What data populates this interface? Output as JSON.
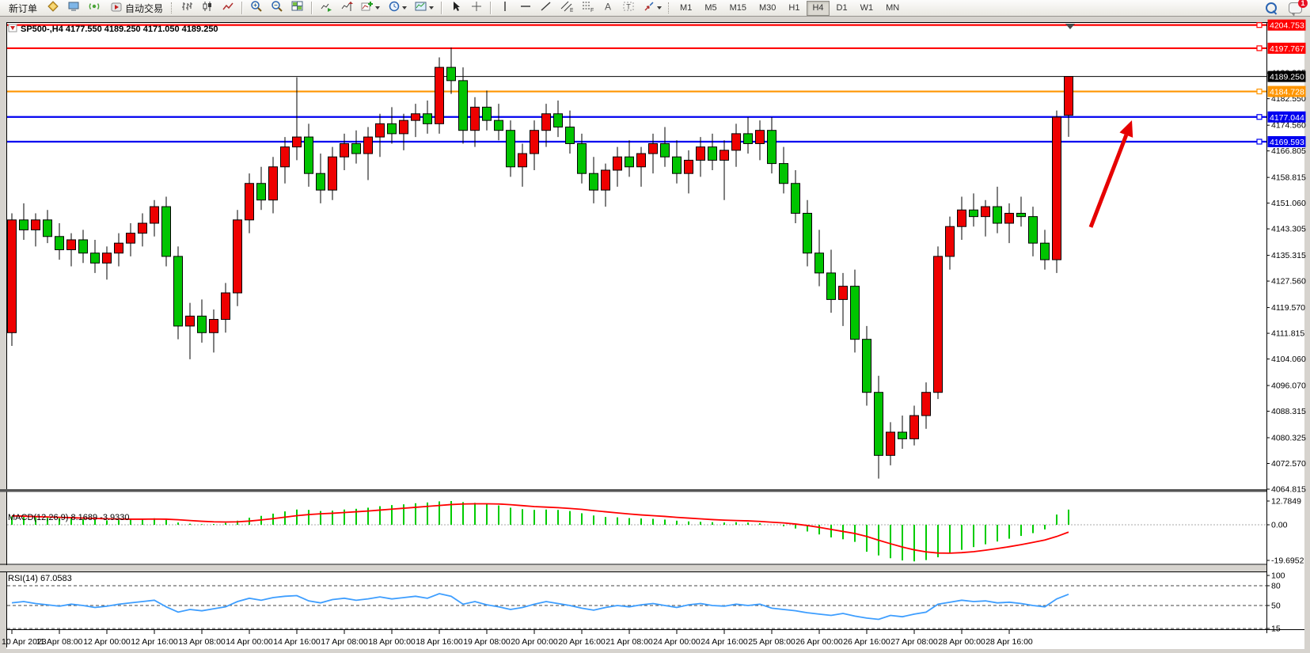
{
  "toolbar": {
    "new_order": "新订单",
    "auto_trading": "自动交易",
    "timeframes": [
      "M1",
      "M5",
      "M15",
      "M30",
      "H1",
      "H4",
      "D1",
      "W1",
      "MN"
    ],
    "active_timeframe": "H4",
    "chat_badge": "1",
    "glyphs": {
      "text_icon": "A",
      "label_icon": "T",
      "channel_icon": "E",
      "fibonacci_icon": "F"
    },
    "icons": [
      "metaeditor-icon",
      "terminal-icon",
      "signals-icon",
      "autotrading-icon",
      "bar-chart-icon",
      "candlestick-chart-icon",
      "line-chart-icon",
      "zoom-in-icon",
      "zoom-out-icon",
      "tile-windows-icon",
      "auto-scroll-icon",
      "chart-shift-icon",
      "indicators-icon",
      "periods-icon",
      "templates-icon",
      "cursor-icon",
      "crosshair-icon",
      "vertical-line-icon",
      "horizontal-line-icon",
      "trendline-icon",
      "equidistant-channel-icon",
      "fibonacci-icon",
      "text-icon",
      "text-label-icon",
      "arrows-icon",
      "search-icon",
      "chat-icon"
    ]
  },
  "chart_data": {
    "type": "candlestick",
    "symbol_period": "SP500-,H4",
    "ohlc": {
      "open": "4177.550",
      "high": "4189.250",
      "low": "4171.050",
      "close": "4189.250"
    },
    "current_price": 4189.25,
    "current_price_label": "4189.250",
    "up_color": "#EE0000",
    "down_color": "#00C400",
    "price_axis_ticks": [
      "4190.305",
      "4182.550",
      "4174.560",
      "4166.805",
      "4158.815",
      "4151.060",
      "4143.305",
      "4135.315",
      "4127.560",
      "4119.570",
      "4111.815",
      "4104.060",
      "4096.070",
      "4088.315",
      "4080.325",
      "4072.570",
      "4064.815"
    ],
    "horizontal_lines": [
      {
        "price": 4204.753,
        "label": "4204.753",
        "color": "#FF0000"
      },
      {
        "price": 4197.767,
        "label": "4197.767",
        "color": "#FF0000"
      },
      {
        "price": 4184.728,
        "label": "4184.728",
        "color": "#FF9500"
      },
      {
        "price": 4177.044,
        "label": "4177.044",
        "color": "#0000F0"
      },
      {
        "price": 4169.593,
        "label": "4169.593",
        "color": "#0000F0"
      }
    ],
    "x_labels": [
      "10 Apr 2023",
      "11 Apr 08:00",
      "12 Apr 00:00",
      "12 Apr 16:00",
      "13 Apr 08:00",
      "14 Apr 00:00",
      "14 Apr 16:00",
      "17 Apr 08:00",
      "18 Apr 00:00",
      "18 Apr 16:00",
      "19 Apr 08:00",
      "20 Apr 00:00",
      "20 Apr 16:00",
      "21 Apr 08:00",
      "24 Apr 00:00",
      "24 Apr 16:00",
      "25 Apr 08:00",
      "26 Apr 00:00",
      "26 Apr 16:00",
      "27 Apr 08:00",
      "28 Apr 00:00",
      "28 Apr 16:00"
    ],
    "candles": [
      [
        4112,
        4148,
        4108,
        4146
      ],
      [
        4146,
        4151,
        4140,
        4143
      ],
      [
        4143,
        4148,
        4138,
        4146
      ],
      [
        4146,
        4149,
        4139,
        4141
      ],
      [
        4141,
        4145,
        4134,
        4137
      ],
      [
        4137,
        4142,
        4132,
        4140
      ],
      [
        4140,
        4143,
        4133,
        4136
      ],
      [
        4136,
        4140,
        4130,
        4133
      ],
      [
        4133,
        4138,
        4128,
        4136
      ],
      [
        4136,
        4142,
        4132,
        4139
      ],
      [
        4139,
        4145,
        4135,
        4142
      ],
      [
        4142,
        4148,
        4138,
        4145
      ],
      [
        4145,
        4152,
        4141,
        4150
      ],
      [
        4150,
        4153,
        4132,
        4135
      ],
      [
        4135,
        4138,
        4110,
        4114
      ],
      [
        4114,
        4121,
        4104,
        4117
      ],
      [
        4117,
        4122,
        4109,
        4112
      ],
      [
        4112,
        4119,
        4106,
        4116
      ],
      [
        4116,
        4127,
        4112,
        4124
      ],
      [
        4124,
        4149,
        4120,
        4146
      ],
      [
        4146,
        4160,
        4142,
        4157
      ],
      [
        4157,
        4162,
        4149,
        4152
      ],
      [
        4152,
        4165,
        4148,
        4162
      ],
      [
        4162,
        4171,
        4157,
        4168
      ],
      [
        4168,
        4189,
        4164,
        4171
      ],
      [
        4171,
        4175,
        4156,
        4160
      ],
      [
        4160,
        4166,
        4151,
        4155
      ],
      [
        4155,
        4168,
        4152,
        4165
      ],
      [
        4165,
        4172,
        4161,
        4169
      ],
      [
        4169,
        4173,
        4163,
        4166
      ],
      [
        4166,
        4174,
        4158,
        4171
      ],
      [
        4171,
        4178,
        4165,
        4175
      ],
      [
        4175,
        4180,
        4169,
        4172
      ],
      [
        4172,
        4178,
        4167,
        4176
      ],
      [
        4176,
        4181,
        4171,
        4178
      ],
      [
        4178,
        4182,
        4172,
        4175
      ],
      [
        4175,
        4195,
        4172,
        4192
      ],
      [
        4192,
        4198,
        4184,
        4188
      ],
      [
        4188,
        4192,
        4169,
        4173
      ],
      [
        4173,
        4183,
        4168,
        4180
      ],
      [
        4180,
        4185,
        4173,
        4176
      ],
      [
        4176,
        4181,
        4170,
        4173
      ],
      [
        4173,
        4176,
        4159,
        4162
      ],
      [
        4162,
        4169,
        4156,
        4166
      ],
      [
        4166,
        4176,
        4161,
        4173
      ],
      [
        4173,
        4181,
        4168,
        4178
      ],
      [
        4178,
        4182,
        4171,
        4174
      ],
      [
        4174,
        4179,
        4166,
        4169
      ],
      [
        4169,
        4172,
        4157,
        4160
      ],
      [
        4160,
        4165,
        4151,
        4155
      ],
      [
        4155,
        4163,
        4150,
        4161
      ],
      [
        4161,
        4168,
        4156,
        4165
      ],
      [
        4165,
        4170,
        4159,
        4162
      ],
      [
        4162,
        4168,
        4156,
        4166
      ],
      [
        4166,
        4172,
        4160,
        4169
      ],
      [
        4169,
        4174,
        4162,
        4165
      ],
      [
        4165,
        4170,
        4157,
        4160
      ],
      [
        4160,
        4167,
        4154,
        4164
      ],
      [
        4164,
        4171,
        4159,
        4168
      ],
      [
        4168,
        4172,
        4161,
        4164
      ],
      [
        4164,
        4170,
        4152,
        4167
      ],
      [
        4167,
        4175,
        4162,
        4172
      ],
      [
        4172,
        4177,
        4166,
        4169
      ],
      [
        4169,
        4176,
        4164,
        4173
      ],
      [
        4173,
        4177,
        4160,
        4163
      ],
      [
        4163,
        4168,
        4154,
        4157
      ],
      [
        4157,
        4161,
        4145,
        4148
      ],
      [
        4148,
        4152,
        4132,
        4136
      ],
      [
        4136,
        4143,
        4126,
        4130
      ],
      [
        4130,
        4137,
        4118,
        4122
      ],
      [
        4122,
        4130,
        4114,
        4126
      ],
      [
        4126,
        4131,
        4106,
        4110
      ],
      [
        4110,
        4114,
        4090,
        4094
      ],
      [
        4094,
        4099,
        4068,
        4075
      ],
      [
        4075,
        4085,
        4072,
        4082
      ],
      [
        4082,
        4087,
        4077,
        4080
      ],
      [
        4080,
        4090,
        4078,
        4087
      ],
      [
        4087,
        4097,
        4083,
        4094
      ],
      [
        4094,
        4138,
        4092,
        4135
      ],
      [
        4135,
        4147,
        4131,
        4144
      ],
      [
        4144,
        4153,
        4140,
        4149
      ],
      [
        4149,
        4154,
        4144,
        4147
      ],
      [
        4147,
        4152,
        4141,
        4150
      ],
      [
        4150,
        4156,
        4142,
        4145
      ],
      [
        4145,
        4151,
        4139,
        4148
      ],
      [
        4148,
        4153,
        4144,
        4147
      ],
      [
        4147,
        4150,
        4135,
        4139
      ],
      [
        4139,
        4143,
        4131,
        4134
      ],
      [
        4134,
        4179,
        4130,
        4177
      ],
      [
        4177.55,
        4189.25,
        4171.05,
        4189.25
      ]
    ],
    "macd": {
      "name": "MACD(12,26,9)",
      "main_value": "8.1689",
      "signal_value": "-3.9330",
      "axis_ticks": [
        "12.7849",
        "0.00",
        "-19.6952"
      ],
      "hist_color": "#00CC00",
      "signal_color": "#FF0000",
      "histogram": [
        4.5,
        4.2,
        4.0,
        3.8,
        3.5,
        3.3,
        3.0,
        2.6,
        2.4,
        2.5,
        2.8,
        3.2,
        3.5,
        2.6,
        1.2,
        0.6,
        0.3,
        0.4,
        1.0,
        2.2,
        3.8,
        4.8,
        6.0,
        7.2,
        8.2,
        8.0,
        7.4,
        7.6,
        8.2,
        8.6,
        9.2,
        10.0,
        10.6,
        11.0,
        11.6,
        12.0,
        12.6,
        12.78,
        12.2,
        11.8,
        11.2,
        10.4,
        9.2,
        8.4,
        8.0,
        8.2,
        8.0,
        7.4,
        6.2,
        5.0,
        4.2,
        4.0,
        3.6,
        3.4,
        3.2,
        2.8,
        2.2,
        1.8,
        1.6,
        1.4,
        1.2,
        1.4,
        1.2,
        0.8,
        0.0,
        -0.8,
        -2.0,
        -3.6,
        -5.2,
        -6.8,
        -7.8,
        -9.2,
        -14.5,
        -16.5,
        -18.0,
        -19.2,
        -19.6952,
        -19.0,
        -17.5,
        -15.5,
        -13.5,
        -12.0,
        -10.5,
        -9.0,
        -7.5,
        -6.0,
        -4.5,
        -2.5,
        5.5,
        8.1689
      ],
      "signal_series": [
        4.8,
        4.6,
        4.4,
        4.2,
        4.0,
        3.8,
        3.6,
        3.4,
        3.2,
        3.1,
        3.0,
        3.0,
        3.1,
        3.0,
        2.7,
        2.3,
        1.9,
        1.6,
        1.5,
        1.6,
        2.0,
        2.6,
        3.3,
        4.1,
        4.9,
        5.5,
        5.9,
        6.2,
        6.6,
        7.0,
        7.4,
        7.9,
        8.4,
        8.9,
        9.4,
        9.9,
        10.4,
        10.9,
        11.2,
        11.3,
        11.3,
        11.2,
        10.8,
        10.3,
        9.8,
        9.5,
        9.2,
        8.8,
        8.3,
        7.6,
        7.0,
        6.4,
        5.8,
        5.3,
        4.9,
        4.5,
        4.0,
        3.6,
        3.2,
        2.8,
        2.5,
        2.3,
        2.1,
        1.8,
        1.4,
        1.0,
        0.4,
        -0.4,
        -1.4,
        -2.5,
        -3.6,
        -4.7,
        -6.3,
        -8.3,
        -10.2,
        -12.0,
        -13.5,
        -14.6,
        -15.2,
        -15.3,
        -15.0,
        -14.5,
        -13.7,
        -12.8,
        -11.8,
        -10.7,
        -9.5,
        -8.2,
        -6.3,
        -3.933
      ]
    },
    "rsi": {
      "name": "RSI(14)",
      "value": "67.0583",
      "axis_ticks": [
        "100",
        "80",
        "50",
        "15"
      ],
      "levels": [
        80,
        50,
        15
      ],
      "color": "#3E9EFF",
      "series": [
        54,
        56,
        53,
        51,
        49,
        52,
        50,
        47,
        49,
        52,
        54,
        56,
        58,
        48,
        40,
        44,
        42,
        45,
        48,
        56,
        61,
        58,
        62,
        64,
        65,
        57,
        54,
        59,
        61,
        58,
        60,
        63,
        60,
        62,
        64,
        61,
        68,
        64,
        52,
        56,
        51,
        48,
        44,
        47,
        52,
        56,
        53,
        50,
        46,
        43,
        47,
        50,
        48,
        51,
        53,
        50,
        47,
        51,
        53,
        50,
        49,
        52,
        50,
        52,
        46,
        44,
        42,
        39,
        37,
        35,
        38,
        34,
        31,
        29,
        35,
        33,
        37,
        40,
        52,
        55,
        58,
        56,
        57,
        54,
        55,
        53,
        50,
        48,
        60,
        67.06
      ]
    },
    "arrow": {
      "from": [
        1378,
        266
      ],
      "to": [
        1430,
        131
      ],
      "color": "#E60000"
    }
  }
}
